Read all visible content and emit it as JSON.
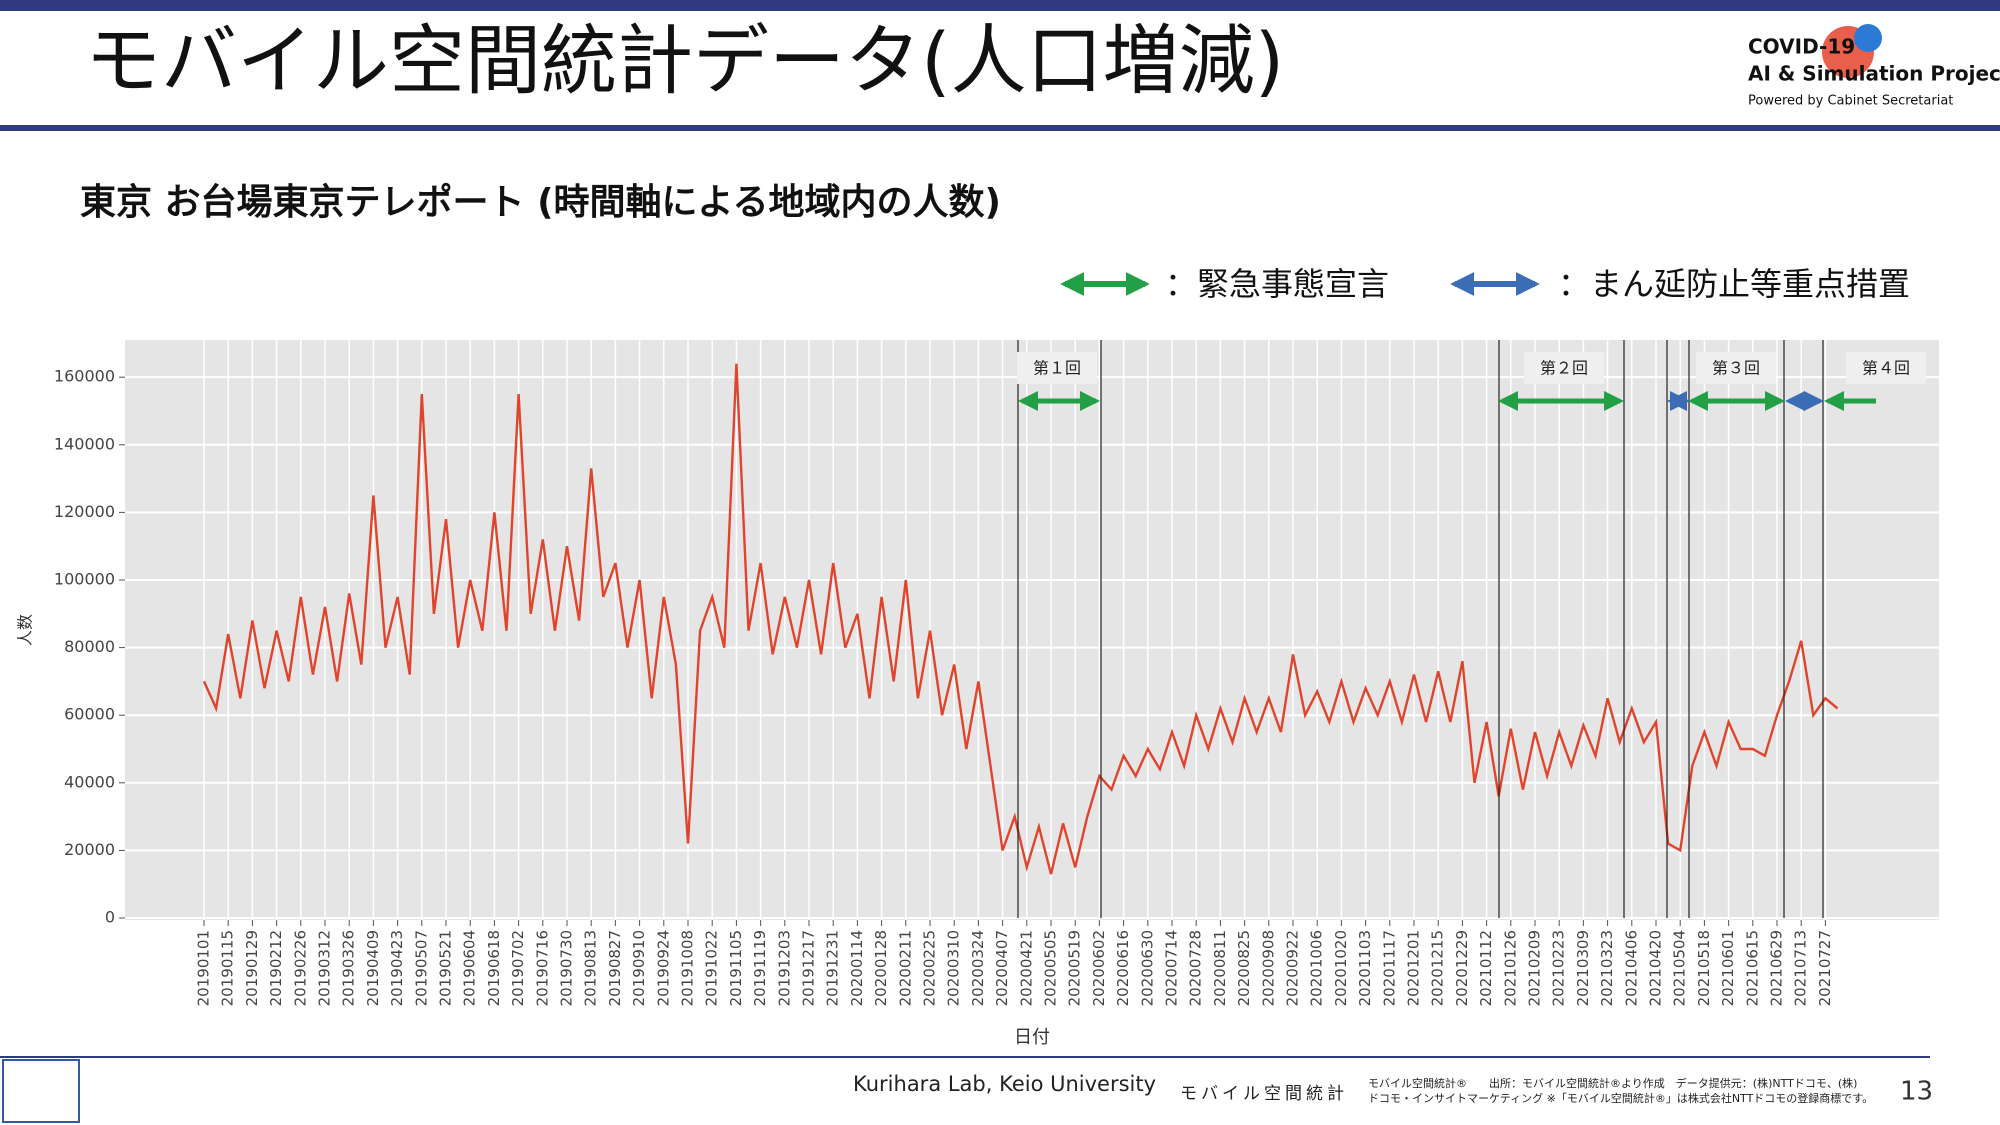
{
  "header": {
    "title": "モバイル空間統計データ(人口増減)",
    "logo": [
      "COVID-19",
      "AI & Simulation Project",
      "Powered by Cabinet Secretariat"
    ]
  },
  "chart_data": {
    "type": "line",
    "title": "東京 お台場東京テレポート (時間軸による地域内の人数)",
    "ylabel": "人数",
    "xlabel": "日付",
    "legend": [
      {
        "label": "：緊急事態宣言",
        "color": "#23a045"
      },
      {
        "label": "：まん延防止等重点措置",
        "color": "#3a6db5"
      }
    ],
    "annotations": [
      "第１回",
      "第２回",
      "第３回",
      "第４回"
    ],
    "ylim": [
      0,
      171000
    ],
    "yticks": [
      0,
      20000,
      40000,
      60000,
      80000,
      100000,
      120000,
      140000,
      160000
    ],
    "grid": true,
    "categories": [
      "20190101",
      null,
      "20190115",
      null,
      "20190129",
      null,
      "20190212",
      null,
      "20190226",
      null,
      "20190312",
      null,
      "20190326",
      null,
      "20190409",
      null,
      "20190423",
      null,
      "20190507",
      null,
      "20190521",
      null,
      "20190604",
      null,
      "20190618",
      null,
      "20190702",
      null,
      "20190716",
      null,
      "20190730",
      null,
      "20190813",
      null,
      "20190827",
      null,
      "20190910",
      null,
      "20190924",
      null,
      "20191008",
      null,
      "20191022",
      null,
      "20191105",
      null,
      "20191119",
      null,
      "20191203",
      null,
      "20191217",
      null,
      "20191231",
      null,
      "20200114",
      null,
      "20200128",
      null,
      "20200211",
      null,
      "20200225",
      null,
      "20200310",
      null,
      "20200324",
      null,
      "20200407",
      null,
      "20200421",
      null,
      "20200505",
      null,
      "20200519",
      null,
      "20200602",
      null,
      "20200616",
      null,
      "20200630",
      null,
      "20200714",
      null,
      "20200728",
      null,
      "20200811",
      null,
      "20200825",
      null,
      "20200908",
      null,
      "20200922",
      null,
      "20201006",
      null,
      "20201020",
      null,
      "20201103",
      null,
      "20201117",
      null,
      "20201201",
      null,
      "20201215",
      null,
      "20201229",
      null,
      "20210112",
      null,
      "20210126",
      null,
      "20210209",
      null,
      "20210223",
      null,
      "20210309",
      null,
      "20210323",
      null,
      "20210406",
      null,
      "20210420",
      null,
      "20210504",
      null,
      "20210518",
      null,
      "20210601",
      null,
      "20210615",
      null,
      "20210629",
      null,
      "20210713",
      null,
      "20210727",
      null
    ],
    "series": [
      {
        "name": "人数",
        "color": "#e0442c",
        "values": [
          70000,
          62000,
          84000,
          65000,
          88000,
          68000,
          85000,
          70000,
          95000,
          72000,
          92000,
          70000,
          96000,
          75000,
          125000,
          80000,
          95000,
          72000,
          155000,
          90000,
          118000,
          80000,
          100000,
          85000,
          120000,
          85000,
          155000,
          90000,
          112000,
          85000,
          110000,
          88000,
          133000,
          95000,
          105000,
          80000,
          100000,
          65000,
          95000,
          75000,
          22000,
          85000,
          95000,
          80000,
          164000,
          85000,
          105000,
          78000,
          95000,
          80000,
          100000,
          78000,
          105000,
          80000,
          90000,
          65000,
          95000,
          70000,
          100000,
          65000,
          85000,
          60000,
          75000,
          50000,
          70000,
          45000,
          20000,
          30000,
          15000,
          27000,
          13000,
          28000,
          15000,
          30000,
          42000,
          38000,
          48000,
          42000,
          50000,
          44000,
          55000,
          45000,
          60000,
          50000,
          62000,
          52000,
          65000,
          55000,
          65000,
          55000,
          78000,
          60000,
          67000,
          58000,
          70000,
          58000,
          68000,
          60000,
          70000,
          58000,
          72000,
          58000,
          73000,
          58000,
          76000,
          40000,
          58000,
          36000,
          56000,
          38000,
          55000,
          42000,
          55000,
          45000,
          57000,
          48000,
          65000,
          52000,
          62000,
          52000,
          58000,
          22000,
          20000,
          45000,
          55000,
          45000,
          58000,
          50000,
          50000,
          48000,
          60000,
          70000,
          82000,
          60000,
          65000,
          62000
        ]
      }
    ]
  },
  "footer": {
    "lab": "Kurihara Lab, Keio University",
    "brand": "モバイル空間統計",
    "notes": [
      "モバイル空間統計®　　出所：モバイル空間統計®より作成　データ提供元：(株)NTTドコモ、(株)",
      "ドコモ・インサイトマーケティング ※「モバイル空間統計®」は株式会社NTTドコモの登録商標です。"
    ],
    "page": "13"
  }
}
